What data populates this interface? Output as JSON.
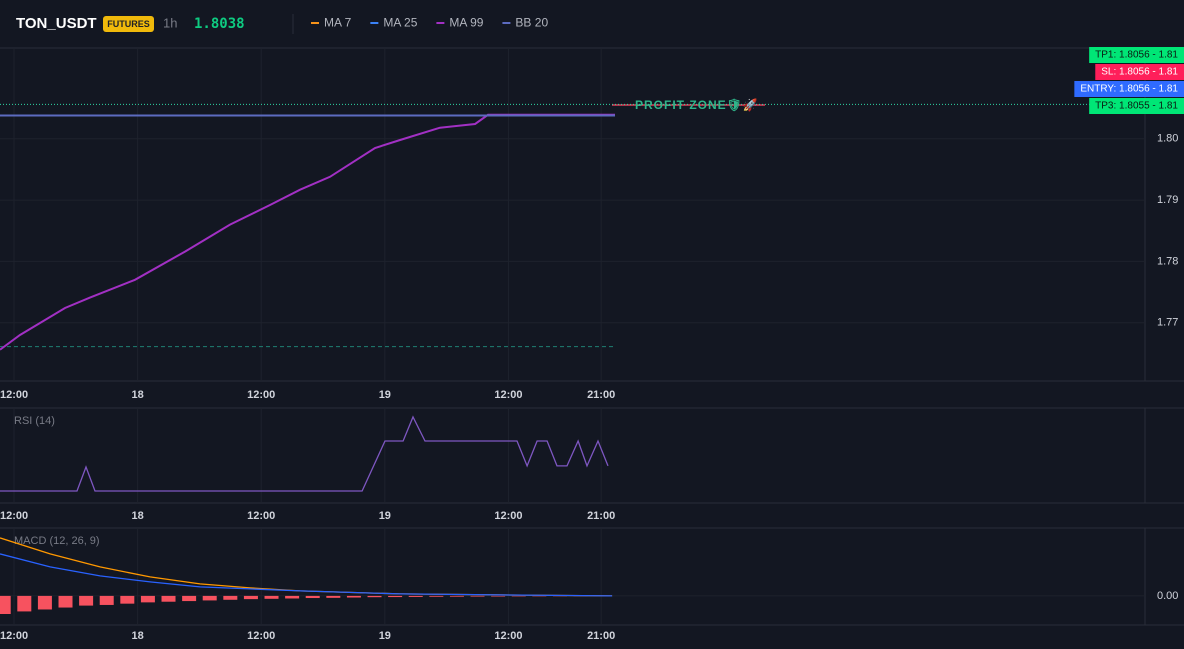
{
  "header": {
    "symbol": "TON_USDT",
    "badge": "FUTURES",
    "interval": "1h",
    "price": 1.8038
  },
  "chart_data": [
    {
      "type": "line",
      "xlim": [
        10.64,
        121.8
      ],
      "ylim": [
        1.7605,
        1.8148
      ],
      "xticks": [
        {
          "value": 12,
          "label": "12:00"
        },
        {
          "value": 24,
          "label": "18"
        },
        {
          "value": 36,
          "label": "12:00"
        },
        {
          "value": 48,
          "label": "19"
        },
        {
          "value": 60,
          "label": "12:00"
        },
        {
          "value": 69,
          "label": "21:00"
        }
      ],
      "yticks": [
        1.77,
        1.78,
        1.79,
        {
          "value": 1.8,
          "label": "1.80"
        }
      ],
      "grid": true,
      "series": [
        {
          "name": "MA 7",
          "color": "#f7931a",
          "x": [
            10.64,
            70.35
          ],
          "values": [
            1.8038,
            1.8038
          ]
        },
        {
          "name": "MA 25",
          "color": "#3b82f6",
          "x": [
            10.64,
            70.35
          ],
          "values": [
            1.8038,
            1.8038
          ]
        },
        {
          "name": "MA 99",
          "color": "#a230c4",
          "x": [
            10.64,
            12.58,
            16.95,
            19.38,
            23.75,
            28.6,
            32.97,
            36.85,
            39.77,
            42.68,
            47.05,
            49.48,
            53.36,
            56.76,
            58.02,
            70.35
          ],
          "values": [
            1.7656,
            1.768,
            1.7724,
            1.7741,
            1.777,
            1.7816,
            1.786,
            1.7892,
            1.7917,
            1.7938,
            1.7985,
            1.7998,
            1.8018,
            1.8024,
            1.8039,
            1.8039
          ]
        },
        {
          "name": "BB 20",
          "color": "#5c6bc0",
          "x": [
            10.64,
            70.35
          ],
          "values": [
            1.8038,
            1.8038
          ]
        }
      ],
      "hlines": [
        {
          "value": 1.8056,
          "color": "#2fd6a5",
          "style": "dotted"
        },
        {
          "value": 1.7661,
          "color": "#1f7f72",
          "style": "dashed",
          "x_end": 70.35
        }
      ],
      "order_labels": [
        {
          "text": "TP1: 1.8056 - 1.81",
          "color": "#00e676"
        },
        {
          "text": "SL: 1.8056 - 1.81",
          "color": "#ff1f5a"
        },
        {
          "text": "ENTRY: 1.8056 - 1.81",
          "color": "#2f6bff"
        },
        {
          "text": "TP3: 1.8055 - 1.81",
          "color": "#00e676"
        }
      ],
      "annotation": "PROFIT ZONE🛡🚀"
    },
    {
      "type": "line",
      "title": "RSI (14)",
      "xlim": [
        10.64,
        121.8
      ],
      "ylim": [
        0,
        100
      ],
      "xticks": [
        {
          "value": 12,
          "label": "12:00"
        },
        {
          "value": 24,
          "label": "18"
        },
        {
          "value": 36,
          "label": "12:00"
        },
        {
          "value": 48,
          "label": "19"
        },
        {
          "value": 60,
          "label": "12:00"
        },
        {
          "value": 69,
          "label": "21:00"
        }
      ],
      "grid": true,
      "series": [
        {
          "color": "#7e57c2",
          "x": [
            10.64,
            18.12,
            18.99,
            19.86,
            45.79,
            48.02,
            49.77,
            50.74,
            51.9,
            60.83,
            61.81,
            62.78,
            63.75,
            64.72,
            65.69,
            66.76,
            67.63,
            68.7,
            69.67
          ],
          "values": [
            12.6,
            12.6,
            37.9,
            12.6,
            12.6,
            65.3,
            65.3,
            90.5,
            65.3,
            65.3,
            39,
            65.3,
            65.3,
            39,
            39,
            65.3,
            39,
            65.3,
            39
          ]
        }
      ]
    },
    {
      "type": "line",
      "title": "MACD (12, 26, 9)",
      "xlim": [
        10.64,
        121.8
      ],
      "ylim": [
        -0.0045,
        0.0105
      ],
      "xticks": [
        {
          "value": 12,
          "label": "12:00"
        },
        {
          "value": 24,
          "label": "18"
        },
        {
          "value": 36,
          "label": "12:00"
        },
        {
          "value": 48,
          "label": "19"
        },
        {
          "value": 60,
          "label": "12:00"
        },
        {
          "value": 69,
          "label": "21:00"
        }
      ],
      "yticks": [
        {
          "value": 0,
          "label": "0.00"
        }
      ],
      "grid": true,
      "series": [
        {
          "color": "#ff9800",
          "x": [
            10.64,
            15.5,
            20.35,
            25.2,
            30.06,
            34.91,
            39.77,
            49.48,
            59.18,
            70.06
          ],
          "values": [
            0.00897,
            0.0065,
            0.00448,
            0.00294,
            0.00186,
            0.00124,
            0.00077,
            0.00031,
            0.00015,
            0
          ]
        },
        {
          "color": "#2962ff",
          "x": [
            10.64,
            15.5,
            20.35,
            25.2,
            30.06,
            34.91,
            39.77,
            49.48,
            59.18,
            70.06
          ],
          "values": [
            0.0065,
            0.00448,
            0.00309,
            0.00216,
            0.00139,
            0.00108,
            0.00077,
            0.00031,
            0.00015,
            0
          ]
        }
      ],
      "histogram": {
        "color": "#f7525f",
        "x": [
          11,
          13,
          15,
          17,
          19,
          21,
          23,
          25,
          27,
          29,
          31,
          33,
          35,
          37,
          39,
          41,
          43,
          45,
          47,
          49,
          51,
          53,
          55,
          57,
          59,
          61,
          63,
          65,
          67,
          69
        ],
        "values": [
          -0.0028,
          -0.0024,
          -0.0021,
          -0.0018,
          -0.0015,
          -0.0014,
          -0.0012,
          -0.001,
          -0.0009,
          -0.0008,
          -0.0007,
          -0.0006,
          -0.0005,
          -0.00045,
          -0.0004,
          -0.00033,
          -0.0003,
          -0.00025,
          -0.0002,
          -0.00018,
          -0.00016,
          -0.00013,
          -0.00012,
          -0.0001,
          -9e-05,
          -7e-05,
          -6e-05,
          -5e-05,
          -4e-05,
          -3e-05
        ]
      }
    }
  ]
}
